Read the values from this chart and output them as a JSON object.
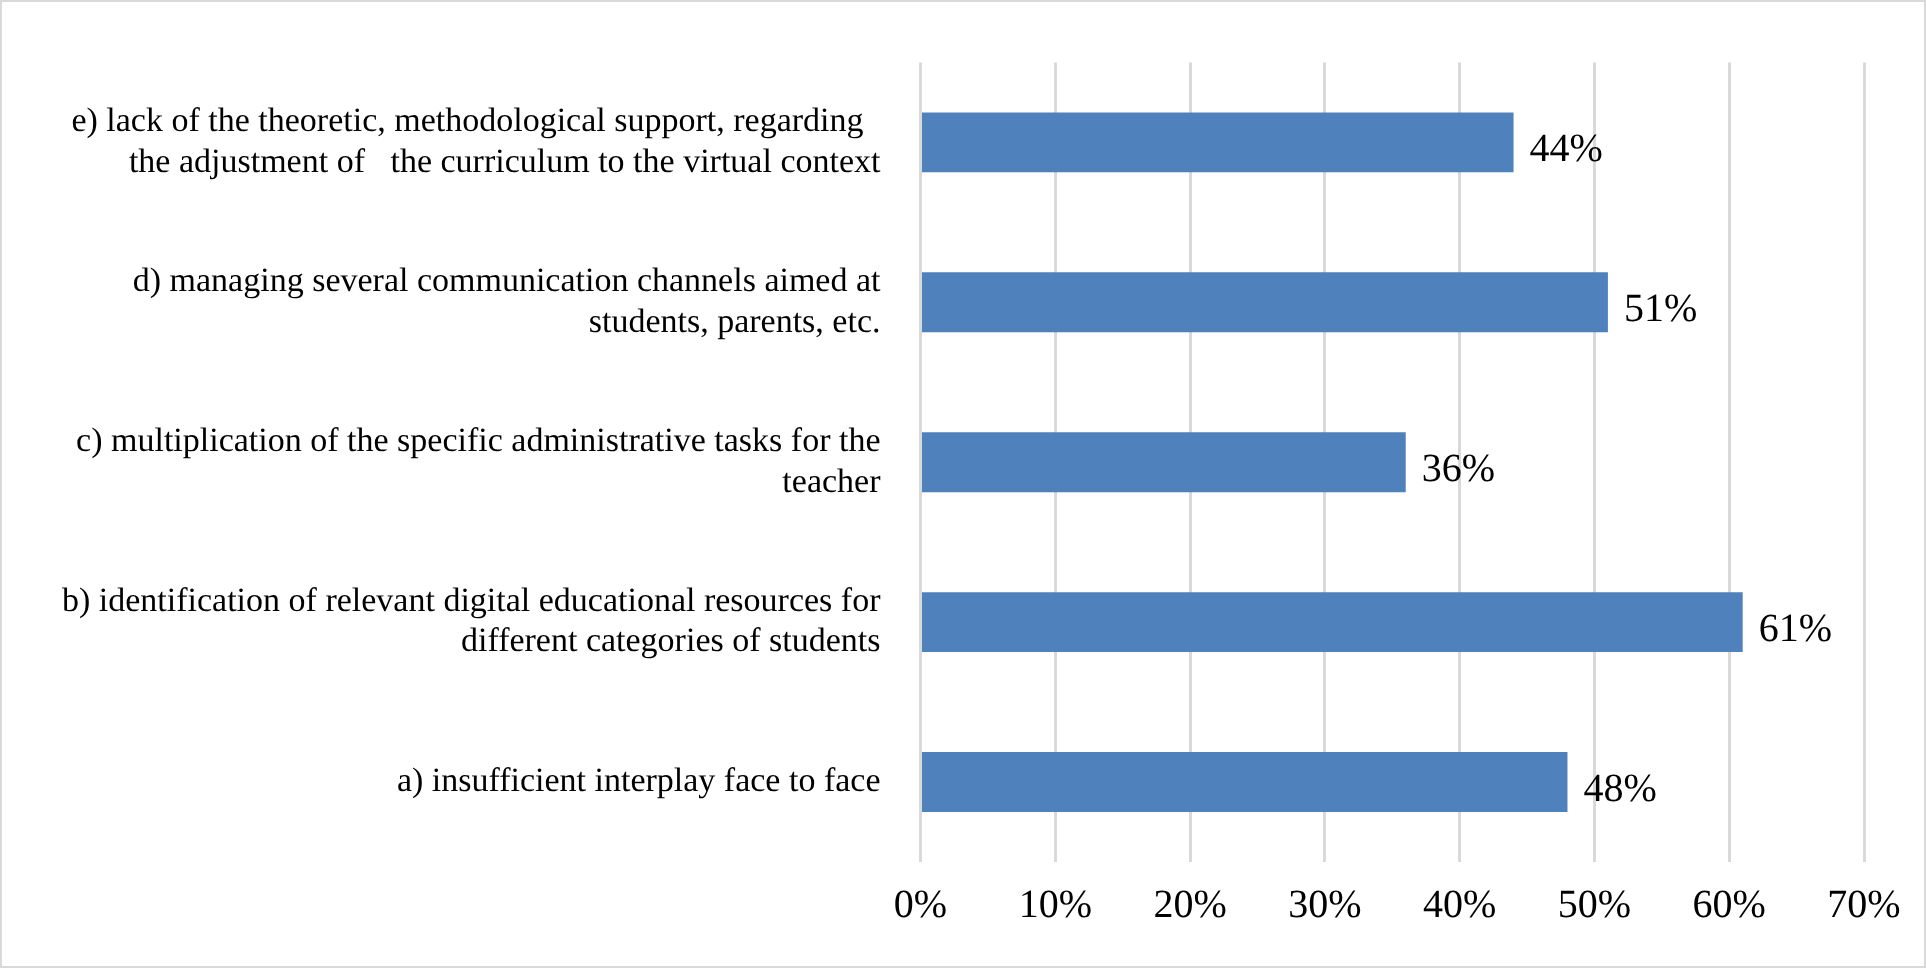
{
  "chart_data": {
    "type": "bar",
    "orientation": "horizontal",
    "categories": [
      "e) lack of the theoretic, methodological support, regarding   the adjustment of   the curriculum to the virtual context",
      "d) managing several communication channels aimed at students, parents, etc.",
      "c) multiplication of the specific administrative tasks for the teacher",
      "b) identification of relevant digital educational resources for different categories of students",
      "a) insufficient interplay face to face"
    ],
    "values": [
      44,
      51,
      36,
      61,
      48
    ],
    "value_labels": [
      "44%",
      "51%",
      "36%",
      "61%",
      "48%"
    ],
    "color": "#4f81bd",
    "xlim": [
      0,
      70
    ],
    "xticks": [
      {
        "value": 0,
        "label": "0%"
      },
      {
        "value": 10,
        "label": "10%"
      },
      {
        "value": 20,
        "label": "20%"
      },
      {
        "value": 30,
        "label": "30%"
      },
      {
        "value": 40,
        "label": "40%"
      },
      {
        "value": 50,
        "label": "50%"
      },
      {
        "value": 60,
        "label": "60%"
      },
      {
        "value": 70,
        "label": "70%"
      }
    ],
    "grid": "x",
    "legend": false
  }
}
